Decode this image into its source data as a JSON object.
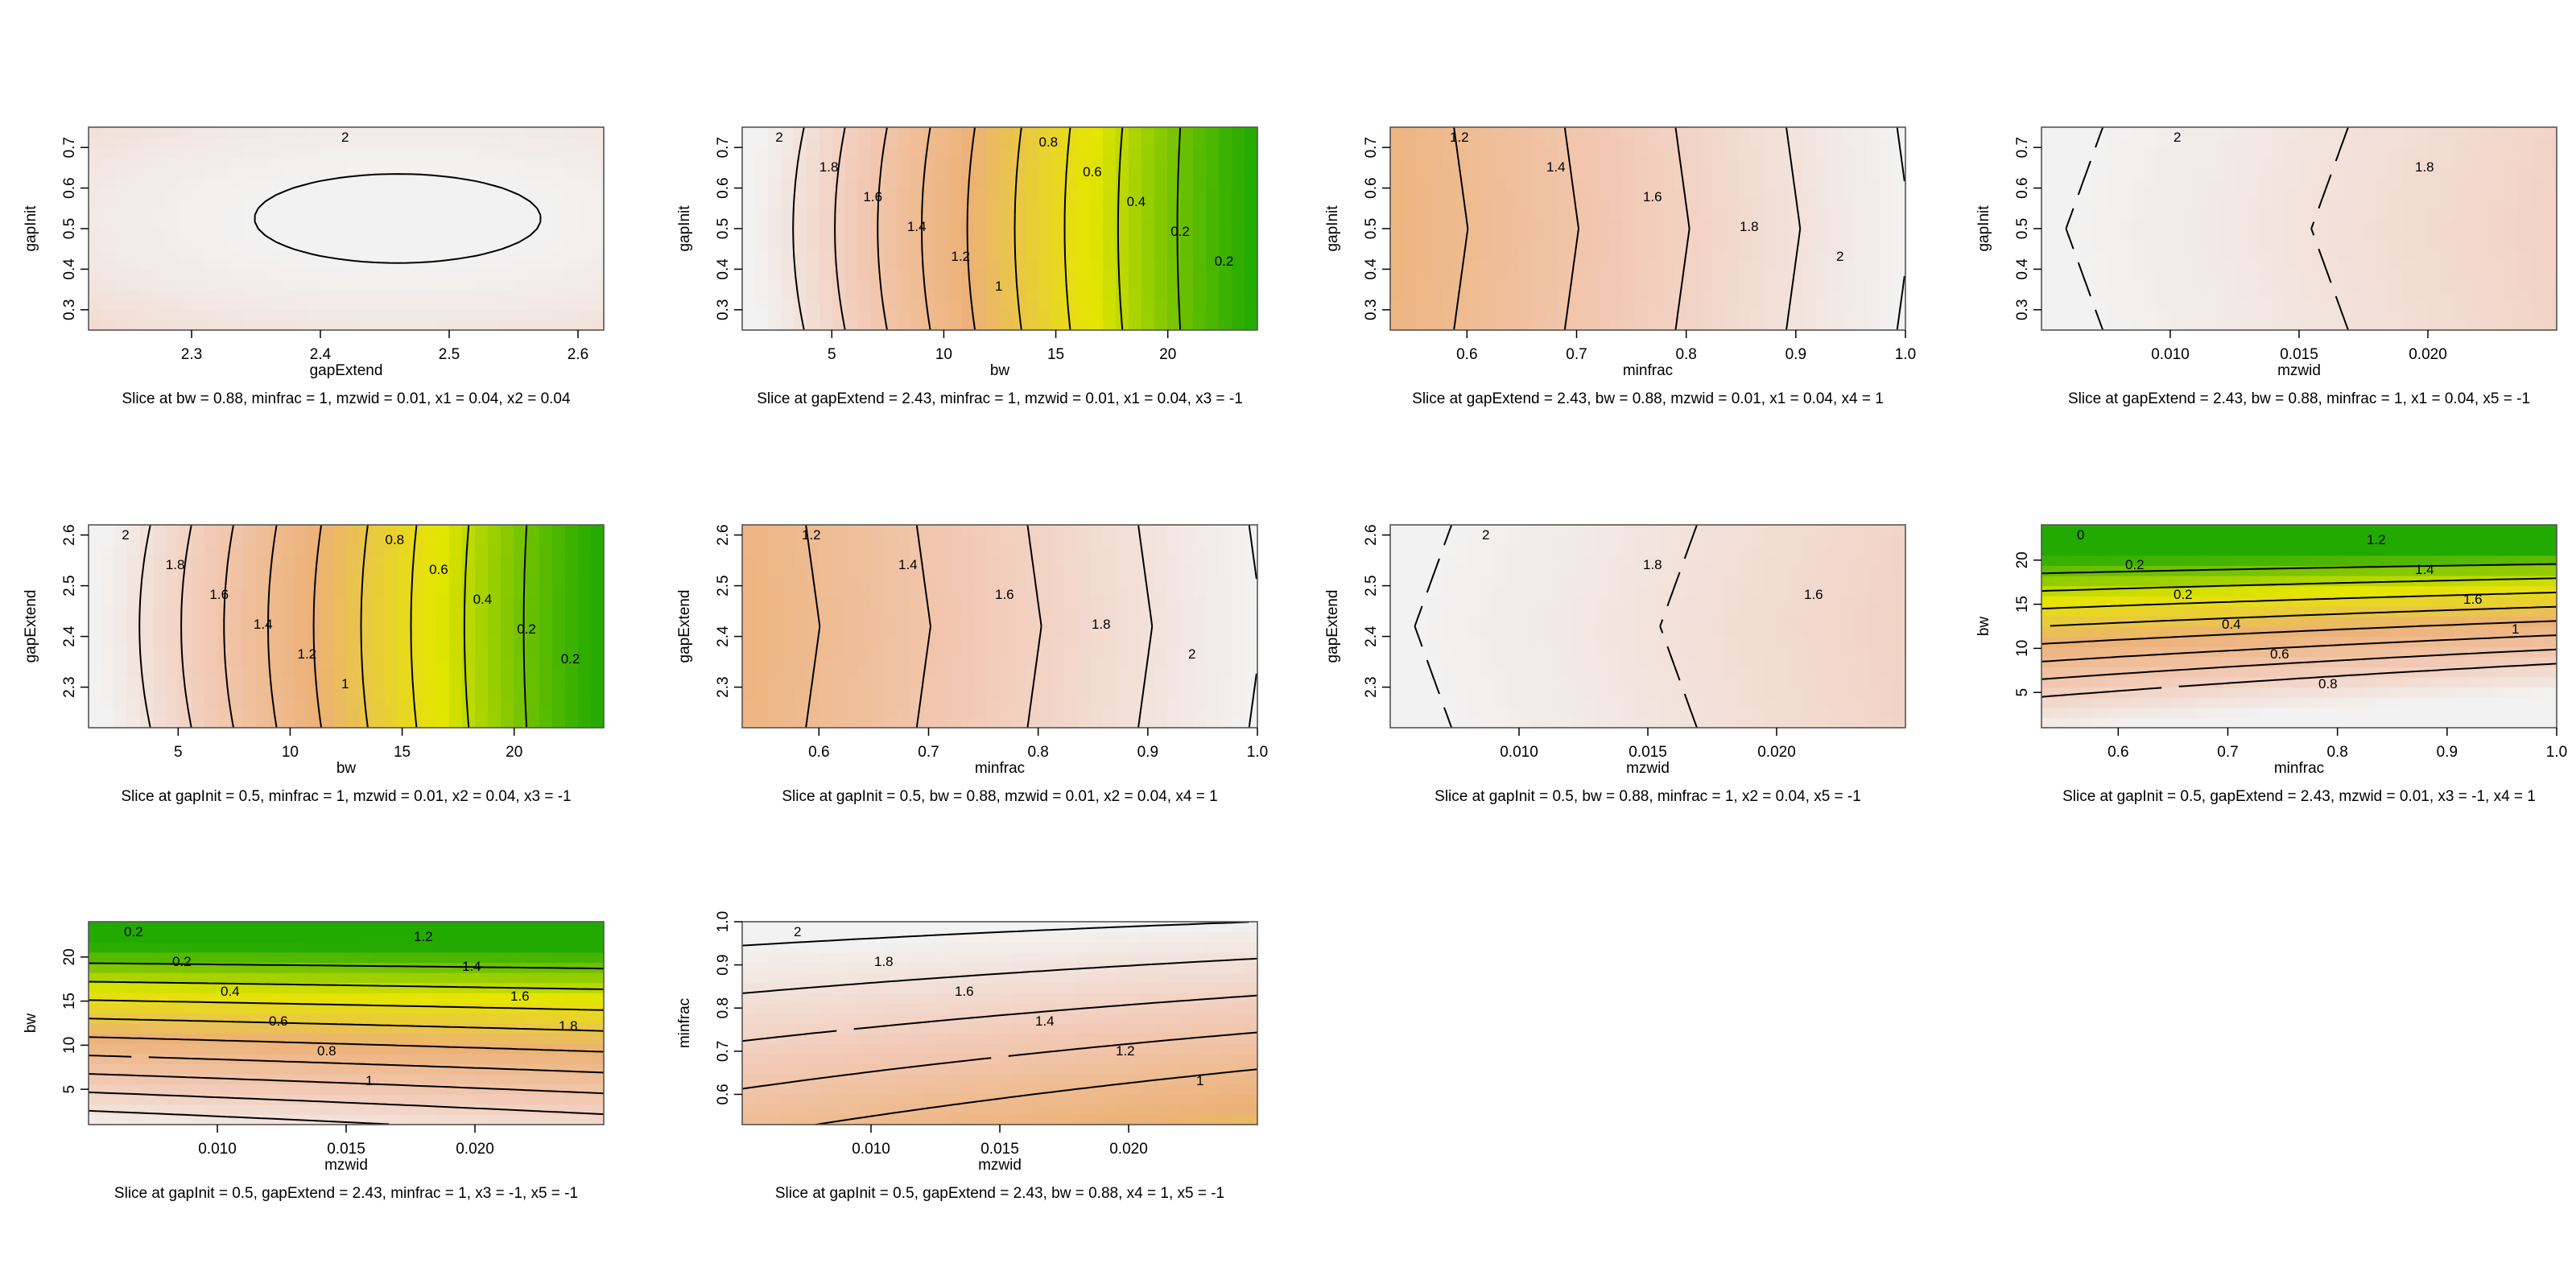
{
  "chart_data": [
    {
      "type": "heatmap",
      "xlabel": "gapExtend",
      "ylabel": "gapInit",
      "caption": "Slice at bw = 0.88, minfrac = 1, mzwid = 0.01, x1 = 0.04, x2 = 0.04",
      "xlim": [
        2.22,
        2.62
      ],
      "ylim": [
        0.25,
        0.75
      ],
      "xticks": [
        2.3,
        2.4,
        2.5,
        2.6
      ],
      "xtick_labels": [
        "2.3",
        "2.4",
        "2.5",
        "2.6"
      ],
      "yticks": [
        0.3,
        0.4,
        0.5,
        0.6,
        0.7
      ],
      "ytick_labels": [
        "0.3",
        "0.4",
        "0.5",
        "0.6",
        "0.7"
      ],
      "contour_labels": [
        "2"
      ]
    },
    {
      "type": "heatmap",
      "xlabel": "bw",
      "ylabel": "gapInit",
      "caption": "Slice at gapExtend = 2.43, minfrac = 1, mzwid = 0.01, x1 = 0.04, x3 = -1",
      "xlim": [
        1,
        24
      ],
      "ylim": [
        0.25,
        0.75
      ],
      "xticks": [
        5,
        10,
        15,
        20
      ],
      "xtick_labels": [
        "5",
        "10",
        "15",
        "20"
      ],
      "yticks": [
        0.3,
        0.4,
        0.5,
        0.6,
        0.7
      ],
      "ytick_labels": [
        "0.3",
        "0.4",
        "0.5",
        "0.6",
        "0.7"
      ],
      "contour_labels": [
        "2",
        "1.8",
        "1.6",
        "1.4",
        "1.2",
        "1",
        "0.8",
        "0.6",
        "0.4",
        "0.2",
        "0.2"
      ]
    },
    {
      "type": "heatmap",
      "xlabel": "minfrac",
      "ylabel": "gapInit",
      "caption": "Slice at gapExtend = 2.43, bw = 0.88, mzwid = 0.01, x1 = 0.04, x4 = 1",
      "xlim": [
        0.53,
        1.0
      ],
      "ylim": [
        0.25,
        0.75
      ],
      "xticks": [
        0.6,
        0.7,
        0.8,
        0.9,
        1.0
      ],
      "xtick_labels": [
        "0.6",
        "0.7",
        "0.8",
        "0.9",
        "1.0"
      ],
      "yticks": [
        0.3,
        0.4,
        0.5,
        0.6,
        0.7
      ],
      "ytick_labels": [
        "0.3",
        "0.4",
        "0.5",
        "0.6",
        "0.7"
      ],
      "contour_labels": [
        "1.2",
        "1.4",
        "1.6",
        "1.8",
        "2"
      ]
    },
    {
      "type": "heatmap",
      "xlabel": "mzwid",
      "ylabel": "gapInit",
      "caption": "Slice at gapExtend = 2.43, bw = 0.88, minfrac = 1, x1 = 0.04, x5 = -1",
      "xlim": [
        0.005,
        0.025
      ],
      "ylim": [
        0.25,
        0.75
      ],
      "xticks": [
        0.01,
        0.015,
        0.02
      ],
      "xtick_labels": [
        "0.010",
        "0.015",
        "0.020"
      ],
      "yticks": [
        0.3,
        0.4,
        0.5,
        0.6,
        0.7
      ],
      "ytick_labels": [
        "0.3",
        "0.4",
        "0.5",
        "0.6",
        "0.7"
      ],
      "contour_labels": [
        "2",
        "1.8"
      ]
    },
    {
      "type": "heatmap",
      "xlabel": "bw",
      "ylabel": "gapExtend",
      "caption": "Slice at gapInit = 0.5, minfrac = 1, mzwid = 0.01, x2 = 0.04, x3 = -1",
      "xlim": [
        1,
        24
      ],
      "ylim": [
        2.22,
        2.62
      ],
      "xticks": [
        5,
        10,
        15,
        20
      ],
      "xtick_labels": [
        "5",
        "10",
        "15",
        "20"
      ],
      "yticks": [
        2.3,
        2.4,
        2.5,
        2.6
      ],
      "ytick_labels": [
        "2.3",
        "2.4",
        "2.5",
        "2.6"
      ],
      "contour_labels": [
        "2",
        "1.8",
        "1.6",
        "1.4",
        "1.2",
        "1",
        "0.8",
        "0.6",
        "0.4",
        "0.2",
        "0.2"
      ]
    },
    {
      "type": "heatmap",
      "xlabel": "minfrac",
      "ylabel": "gapExtend",
      "caption": "Slice at gapInit = 0.5, bw = 0.88, mzwid = 0.01, x2 = 0.04, x4 = 1",
      "xlim": [
        0.53,
        1.0
      ],
      "ylim": [
        2.22,
        2.62
      ],
      "xticks": [
        0.6,
        0.7,
        0.8,
        0.9,
        1.0
      ],
      "xtick_labels": [
        "0.6",
        "0.7",
        "0.8",
        "0.9",
        "1.0"
      ],
      "yticks": [
        2.3,
        2.4,
        2.5,
        2.6
      ],
      "ytick_labels": [
        "2.3",
        "2.4",
        "2.5",
        "2.6"
      ],
      "contour_labels": [
        "1.2",
        "1.4",
        "1.6",
        "1.8",
        "2"
      ]
    },
    {
      "type": "heatmap",
      "xlabel": "mzwid",
      "ylabel": "gapExtend",
      "caption": "Slice at gapInit = 0.5, bw = 0.88, minfrac = 1, x2 = 0.04, x5 = -1",
      "xlim": [
        0.005,
        0.025
      ],
      "ylim": [
        2.22,
        2.62
      ],
      "xticks": [
        0.01,
        0.015,
        0.02
      ],
      "xtick_labels": [
        "0.010",
        "0.015",
        "0.020"
      ],
      "yticks": [
        2.3,
        2.4,
        2.5,
        2.6
      ],
      "ytick_labels": [
        "2.3",
        "2.4",
        "2.5",
        "2.6"
      ],
      "contour_labels": [
        "2",
        "1.8",
        "1.6"
      ]
    },
    {
      "type": "heatmap",
      "xlabel": "minfrac",
      "ylabel": "bw",
      "caption": "Slice at gapInit = 0.5, gapExtend = 2.43, mzwid = 0.01, x3 = -1, x4 = 1",
      "xlim": [
        0.53,
        1.0
      ],
      "ylim": [
        1,
        24
      ],
      "xticks": [
        0.6,
        0.7,
        0.8,
        0.9,
        1.0
      ],
      "xtick_labels": [
        "0.6",
        "0.7",
        "0.8",
        "0.9",
        "1.0"
      ],
      "yticks": [
        5,
        10,
        15,
        20
      ],
      "ytick_labels": [
        "5",
        "10",
        "15",
        "20"
      ],
      "contour_labels": [
        "0",
        "0.2",
        "0.2",
        "0.4",
        "0.6",
        "0.8",
        "1.2",
        "1.4",
        "1.6",
        "1"
      ]
    },
    {
      "type": "heatmap",
      "xlabel": "mzwid",
      "ylabel": "bw",
      "caption": "Slice at gapInit = 0.5, gapExtend = 2.43, minfrac = 1, x3 = -1, x5 = -1",
      "xlim": [
        0.005,
        0.025
      ],
      "ylim": [
        1,
        24
      ],
      "xticks": [
        0.01,
        0.015,
        0.02
      ],
      "xtick_labels": [
        "0.010",
        "0.015",
        "0.020"
      ],
      "yticks": [
        5,
        10,
        15,
        20
      ],
      "ytick_labels": [
        "5",
        "10",
        "15",
        "20"
      ],
      "contour_labels": [
        "0.2",
        "0.2",
        "0.4",
        "0.6",
        "0.8",
        "1",
        "1.2",
        "1.4",
        "1.6",
        "1.8"
      ]
    },
    {
      "type": "heatmap",
      "xlabel": "mzwid",
      "ylabel": "minfrac",
      "caption": "Slice at gapInit = 0.5, gapExtend = 2.43, bw = 0.88, x4 = 1, x5 = -1",
      "xlim": [
        0.005,
        0.025
      ],
      "ylim": [
        0.53,
        1.0
      ],
      "xticks": [
        0.01,
        0.015,
        0.02
      ],
      "xtick_labels": [
        "0.010",
        "0.015",
        "0.020"
      ],
      "yticks": [
        0.6,
        0.7,
        0.8,
        0.9,
        1.0
      ],
      "ytick_labels": [
        "0.6",
        "0.7",
        "0.8",
        "0.9",
        "1.0"
      ],
      "contour_labels": [
        "2",
        "1.8",
        "1.6",
        "1.4",
        "1.2",
        "1"
      ]
    }
  ],
  "colors": {
    "green": "#22aa00",
    "yellow": "#e6e600",
    "orange": "#ecb176",
    "pink": "#f2cab7",
    "light": "#f2f2f2"
  }
}
